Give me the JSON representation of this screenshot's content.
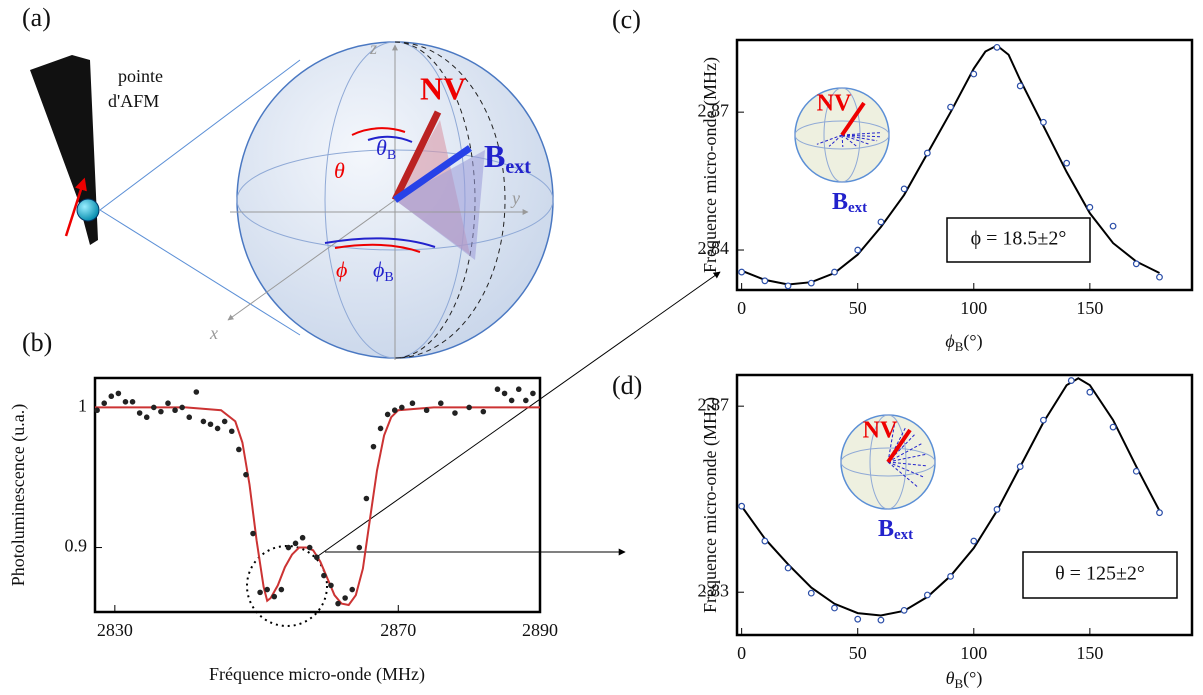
{
  "diagram": {
    "panel_label": "(a)",
    "tip_label": [
      "pointe",
      "d'AFM"
    ],
    "axes": {
      "x": "x",
      "y": "y",
      "z": "z"
    },
    "nv": "NV",
    "bext": {
      "symbol": "B",
      "sub": "ext"
    },
    "angles": [
      {
        "symbol": "θ",
        "sub": "B"
      },
      {
        "symbol": "θ",
        "sub": ""
      },
      {
        "symbol": "ϕ",
        "sub": ""
      },
      {
        "symbol": "ϕ",
        "sub": "B"
      }
    ]
  },
  "chart_data": [
    {
      "type": "scatter",
      "panel_label": "(b)",
      "x_label": "Fréquence micro-onde (MHz)",
      "y_label": "Photoluminescence (u.a.)",
      "xlim": [
        2827.2,
        2890
      ],
      "ylim": [
        0.854,
        1.021
      ],
      "xticks": [
        2830,
        2870,
        2890
      ],
      "yticks": [
        0.9,
        1
      ],
      "marker": "filled",
      "points": {
        "color": "#222222",
        "x": [
          2827.5,
          2828.5,
          2829.5,
          2830.5,
          2831.5,
          2832.5,
          2833.5,
          2834.5,
          2835.5,
          2836.5,
          2837.5,
          2838.5,
          2839.5,
          2840.5,
          2841.5,
          2842.5,
          2843.5,
          2844.5,
          2845.5,
          2846.5,
          2847.5,
          2848.5,
          2849.5,
          2850.5,
          2851.5,
          2852.5,
          2853.5,
          2854.5,
          2855.5,
          2856.5,
          2857.5,
          2858.5,
          2859.5,
          2860.5,
          2861.5,
          2862.5,
          2863.5,
          2864.5,
          2865.5,
          2866.5,
          2867.5,
          2868.5,
          2869.5,
          2870.5,
          2872,
          2874,
          2876,
          2878,
          2880,
          2882,
          2884,
          2885,
          2886,
          2887,
          2888,
          2889
        ],
        "values": [
          0.998,
          1.003,
          1.008,
          1.01,
          1.004,
          1.004,
          0.996,
          0.993,
          1.0,
          0.997,
          1.003,
          0.998,
          1.0,
          0.993,
          1.011,
          0.99,
          0.988,
          0.985,
          0.99,
          0.983,
          0.97,
          0.952,
          0.91,
          0.868,
          0.87,
          0.865,
          0.87,
          0.9,
          0.903,
          0.907,
          0.9,
          0.893,
          0.88,
          0.873,
          0.86,
          0.864,
          0.87,
          0.9,
          0.935,
          0.972,
          0.985,
          0.995,
          0.998,
          1.0,
          1.003,
          0.998,
          1.003,
          0.996,
          1.0,
          0.997,
          1.013,
          1.01,
          1.005,
          1.013,
          1.005,
          1.01
        ]
      },
      "fit": {
        "color": "#cc3333",
        "x": [
          2827.2,
          2840,
          2845,
          2847,
          2848,
          2849,
          2850,
          2851,
          2851.5,
          2852,
          2853,
          2854,
          2855,
          2856,
          2857,
          2858,
          2859,
          2860,
          2861,
          2862,
          2863,
          2864,
          2865,
          2866,
          2867,
          2868,
          2869,
          2870,
          2875,
          2890
        ],
        "values": [
          1,
          1,
          0.998,
          0.99,
          0.975,
          0.945,
          0.905,
          0.872,
          0.862,
          0.864,
          0.873,
          0.886,
          0.895,
          0.9,
          0.9,
          0.898,
          0.89,
          0.878,
          0.866,
          0.86,
          0.859,
          0.866,
          0.885,
          0.92,
          0.955,
          0.98,
          0.993,
          0.998,
          1,
          1
        ]
      }
    },
    {
      "type": "scatter",
      "panel_label": "(c)",
      "x_label": {
        "symbol": "ϕ",
        "sub": "B",
        "unit": "(°)"
      },
      "y_label": "Fréquence micro-onde (MHz)",
      "xlim": [
        -2,
        194
      ],
      "ylim": [
        2.8313,
        2.8857
      ],
      "xticks": [
        0,
        50,
        100,
        150
      ],
      "yticks": [
        2.84,
        2.87
      ],
      "marker": "open",
      "annotation": "ϕ = 18.5±2°",
      "inset": {
        "nv": "NV",
        "bext": {
          "symbol": "B",
          "sub": "ext"
        }
      },
      "points": {
        "color": "#2b4ea8",
        "x": [
          0,
          10,
          20,
          30,
          40,
          50,
          60,
          70,
          80,
          90,
          100,
          110,
          120,
          130,
          140,
          150,
          160,
          170,
          180
        ],
        "values": [
          2.8352,
          2.8333,
          2.8322,
          2.8328,
          2.8352,
          2.84,
          2.8461,
          2.8533,
          2.8611,
          2.8711,
          2.8783,
          2.8841,
          2.8757,
          2.8678,
          2.8589,
          2.8493,
          2.8452,
          2.837,
          2.8341
        ]
      },
      "fit": {
        "color": "#000000",
        "x": [
          0,
          10,
          20,
          30,
          40,
          50,
          60,
          70,
          80,
          90,
          100,
          105,
          110,
          115,
          120,
          130,
          140,
          150,
          160,
          170,
          180
        ],
        "values": [
          2.8355,
          2.8335,
          2.8325,
          2.833,
          2.835,
          2.839,
          2.845,
          2.852,
          2.861,
          2.87,
          2.8795,
          2.8832,
          2.8845,
          2.8825,
          2.877,
          2.867,
          2.857,
          2.848,
          2.8415,
          2.8375,
          2.835
        ]
      }
    },
    {
      "type": "scatter",
      "panel_label": "(d)",
      "x_label": {
        "symbol": "θ",
        "sub": "B",
        "unit": "(°)"
      },
      "y_label": "Fréquence micro-onde (MHz)",
      "xlim": [
        -2,
        194
      ],
      "ylim": [
        2.8208,
        2.8767
      ],
      "xticks": [
        0,
        50,
        100,
        150
      ],
      "yticks": [
        2.83,
        2.87
      ],
      "marker": "open",
      "annotation": "θ = 125±2°",
      "inset": {
        "nv": "NV",
        "bext": {
          "symbol": "B",
          "sub": "ext"
        }
      },
      "points": {
        "color": "#2b4ea8",
        "x": [
          0,
          10,
          20,
          30,
          40,
          50,
          60,
          70,
          80,
          90,
          100,
          110,
          120,
          130,
          142,
          150,
          160,
          170,
          180
        ],
        "values": [
          2.8485,
          2.841,
          2.8352,
          2.8298,
          2.8266,
          2.8242,
          2.824,
          2.8261,
          2.8294,
          2.8334,
          2.841,
          2.8478,
          2.857,
          2.867,
          2.8755,
          2.873,
          2.8655,
          2.856,
          2.8471
        ]
      },
      "fit": {
        "color": "#000000",
        "x": [
          0,
          10,
          20,
          30,
          40,
          50,
          60,
          70,
          80,
          90,
          100,
          110,
          120,
          130,
          140,
          145,
          150,
          160,
          170,
          180
        ],
        "values": [
          2.8485,
          2.8415,
          2.836,
          2.831,
          2.8275,
          2.8255,
          2.825,
          2.826,
          2.829,
          2.8335,
          2.8395,
          2.8475,
          2.857,
          2.8665,
          2.8745,
          2.876,
          2.8745,
          2.867,
          2.857,
          2.8475
        ]
      }
    }
  ]
}
